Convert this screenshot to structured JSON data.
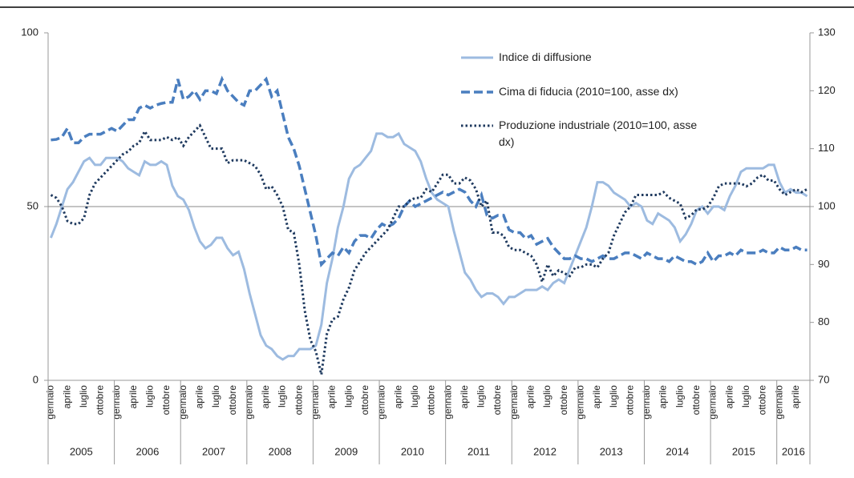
{
  "chart_data": {
    "type": "line",
    "categories": [
      "gennaio",
      null,
      null,
      "aprile",
      null,
      null,
      "luglio",
      null,
      null,
      "ottobre",
      null,
      null,
      "gennaio",
      null,
      null,
      "aprile",
      null,
      null,
      "luglio",
      null,
      null,
      "ottobre",
      null,
      null,
      "gennaio",
      null,
      null,
      "aprile",
      null,
      null,
      "luglio",
      null,
      null,
      "ottobre",
      null,
      null,
      "gennaio",
      null,
      null,
      "aprile",
      null,
      null,
      "luglio",
      null,
      null,
      "ottobre",
      null,
      null,
      "gennaio",
      null,
      null,
      "aprile",
      null,
      null,
      "luglio",
      null,
      null,
      "ottobre",
      null,
      null,
      "gennaio",
      null,
      null,
      "aprile",
      null,
      null,
      "luglio",
      null,
      null,
      "ottobre",
      null,
      null,
      "gennaio",
      null,
      null,
      "aprile",
      null,
      null,
      "luglio",
      null,
      null,
      "ottobre",
      null,
      null,
      "gennaio",
      null,
      null,
      "aprile",
      null,
      null,
      "luglio",
      null,
      null,
      "ottobre",
      null,
      null,
      "gennaio",
      null,
      null,
      "aprile",
      null,
      null,
      "luglio",
      null,
      null,
      "ottobre",
      null,
      null,
      "gennaio",
      null,
      null,
      "aprile",
      null,
      null,
      "luglio",
      null,
      null,
      "ottobre",
      null,
      null,
      "gennaio",
      null,
      null,
      "aprile",
      null,
      null,
      "luglio",
      null,
      null,
      "ottobre",
      null,
      null,
      "gennaio",
      null,
      null,
      "aprile",
      null,
      null
    ],
    "x_groups": [
      "2005",
      "2006",
      "2007",
      "2008",
      "2009",
      "2010",
      "2011",
      "2012",
      "2013",
      "2014",
      "2015",
      "2016"
    ],
    "series": [
      {
        "name": "Indice di diffusione",
        "color": "#9dbbe0",
        "style": "solid",
        "values": [
          41,
          45,
          50,
          55,
          57,
          60,
          63,
          64,
          62,
          62,
          64,
          64,
          64,
          63,
          61,
          60,
          59,
          63,
          62,
          62,
          63,
          62,
          56,
          53,
          52,
          49,
          44,
          40,
          38,
          39,
          41,
          41,
          38,
          36,
          37,
          32,
          25,
          19,
          13,
          10,
          9,
          7,
          6,
          7,
          7,
          9,
          9,
          9,
          10,
          16,
          28,
          35,
          44,
          50,
          58,
          61,
          62,
          64,
          66,
          71,
          71,
          70,
          70,
          71,
          68,
          67,
          66,
          63,
          58,
          54,
          52,
          51,
          50,
          43,
          37,
          31,
          29,
          26,
          24,
          25,
          25,
          24,
          22,
          24,
          24,
          25,
          26,
          26,
          26,
          27,
          26,
          28,
          29,
          28,
          32,
          36,
          40,
          44,
          50,
          57,
          57,
          56,
          54,
          53,
          52,
          50,
          51,
          50,
          46,
          45,
          48,
          47,
          46,
          44,
          40,
          42,
          45,
          49,
          50,
          48,
          50,
          50,
          49,
          53,
          56,
          60,
          61,
          61,
          61,
          61,
          62,
          62,
          57,
          54,
          55,
          54,
          54,
          53
        ]
      },
      {
        "name": "Cima di fiducia (2010=100, asse dx)",
        "color": "#4a7ebf",
        "style": "dashed",
        "axis": "y2",
        "values": [
          111.5,
          111.6,
          112,
          113.5,
          111,
          111,
          112,
          112.5,
          112.5,
          112.5,
          113,
          113.5,
          113,
          114,
          115,
          115,
          117,
          117.5,
          117,
          117.5,
          117.8,
          118,
          118,
          122,
          118.5,
          119,
          120,
          118.5,
          120,
          120,
          119.5,
          122,
          120,
          119,
          118,
          117.5,
          120,
          120,
          121,
          122,
          119,
          120,
          116,
          112,
          110,
          107,
          103,
          99,
          95,
          90,
          91,
          92,
          91.5,
          93,
          92,
          94,
          95,
          95,
          94.5,
          96,
          97,
          96.5,
          97,
          98,
          100,
          101,
          100,
          100.5,
          101,
          101.5,
          102,
          102.5,
          102,
          102.5,
          103,
          102.5,
          101,
          100,
          102,
          98.5,
          98,
          98.5,
          98.5,
          96,
          95.5,
          95.5,
          94.5,
          95,
          93.5,
          94,
          94.5,
          93,
          92,
          91,
          91,
          91.5,
          91,
          91,
          90.5,
          91,
          91.5,
          91,
          91,
          91.5,
          92,
          92,
          91.5,
          91,
          92,
          91.5,
          91,
          91,
          90.5,
          91.5,
          91,
          90.5,
          90.5,
          90,
          90.5,
          92,
          90.5,
          91.5,
          91.5,
          92,
          91.5,
          92.5,
          92,
          92,
          92,
          92.5,
          92,
          92,
          93,
          92.5,
          92.5,
          93,
          92.5,
          92.5
        ]
      },
      {
        "name": "Produzione industriale (2010=100, asse dx)",
        "color": "#1f3a5f",
        "style": "dotted",
        "axis": "y2",
        "values": [
          102,
          101.5,
          100,
          97.5,
          97,
          97,
          98,
          102,
          104,
          105,
          106,
          107,
          108,
          109,
          109.5,
          110.5,
          111,
          113,
          111.5,
          111.5,
          111.5,
          112,
          111.5,
          112,
          110.5,
          112,
          113,
          114,
          112,
          110,
          110,
          110,
          107.5,
          108,
          108,
          108,
          107.5,
          107,
          105.5,
          103,
          103.5,
          102,
          100,
          96,
          95.5,
          90,
          82,
          77,
          75,
          71,
          78,
          80.5,
          81,
          84,
          86,
          89,
          90.5,
          92,
          93,
          94,
          95,
          96,
          98,
          100,
          100,
          101,
          101.5,
          101.5,
          103,
          102.5,
          104,
          105.5,
          105.5,
          104,
          104,
          105,
          104.5,
          103,
          100,
          101,
          95.5,
          95.5,
          95,
          93,
          92.5,
          92.5,
          92,
          91.5,
          90,
          87,
          90,
          88,
          89,
          88.5,
          88,
          89.5,
          89.5,
          90,
          90,
          89.5,
          91,
          92,
          95,
          97,
          99,
          100,
          102,
          102,
          102,
          102,
          102,
          102.5,
          101.5,
          101,
          100.5,
          98,
          98.5,
          99.5,
          99.5,
          100,
          101.5,
          103.5,
          104,
          104,
          104,
          104,
          103.5,
          104,
          105,
          105.5,
          104.5,
          104.5,
          103,
          102,
          102.5,
          103,
          102.5,
          103
        ]
      }
    ],
    "ylim": [
      0,
      100
    ],
    "yticks": [
      0,
      50,
      100
    ],
    "y2lim": [
      70,
      130
    ],
    "y2ticks": [
      70,
      80,
      90,
      100,
      110,
      120,
      130
    ],
    "grid": true,
    "legend": "top-right"
  }
}
